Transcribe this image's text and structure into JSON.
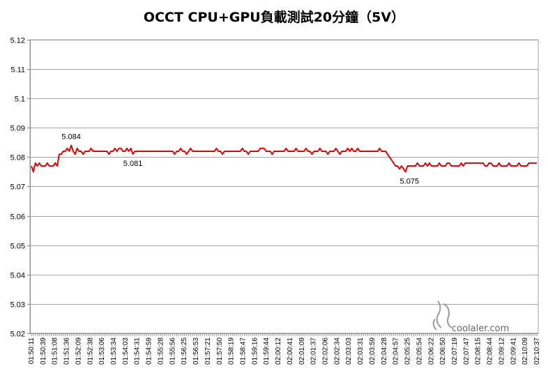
{
  "chart_data": {
    "type": "line",
    "title": "OCCT CPU+GPU負載測試20分鐘（5V）",
    "xlabel": "",
    "ylabel": "",
    "ylim": [
      5.02,
      5.12
    ],
    "yticks": [
      "5.12",
      "5.11",
      "5.1",
      "5.09",
      "5.08",
      "5.07",
      "5.06",
      "5.05",
      "5.04",
      "5.03",
      "5.02"
    ],
    "grid": true,
    "line_color": "#e60000",
    "x_tick_labels": [
      "01:50:11",
      "01:50:39",
      "01:51:08",
      "01:51:36",
      "01:52:09",
      "01:52:38",
      "01:53:06",
      "01:53:34",
      "01:54:03",
      "01:54:31",
      "01:54:59",
      "01:55:28",
      "01:55:56",
      "01:56:25",
      "01:56:53",
      "01:57:21",
      "01:57:50",
      "01:58:19",
      "01:58:47",
      "01:59:16",
      "01:59:44",
      "02:00:12",
      "02:00:41",
      "02:01:09",
      "02:01:37",
      "02:02:06",
      "02:02:34",
      "02:03:03",
      "02:03:31",
      "02:03:59",
      "02:04:28",
      "02:04:57",
      "02:05:25",
      "02:05:54",
      "02:06:22",
      "02:06:50",
      "02:07:19",
      "02:07:47",
      "02:08:15",
      "02:08:44",
      "02:09:12",
      "02:09:41",
      "02:10:09",
      "02:10:37"
    ],
    "series": [
      {
        "values": [
          5.077,
          5.075,
          5.078,
          5.077,
          5.078,
          5.077,
          5.077,
          5.077,
          5.078,
          5.077,
          5.077,
          5.077,
          5.078,
          5.077,
          5.081,
          5.081,
          5.082,
          5.082,
          5.083,
          5.082,
          5.084,
          5.082,
          5.081,
          5.083,
          5.082,
          5.082,
          5.081,
          5.082,
          5.082,
          5.082,
          5.083,
          5.082,
          5.082,
          5.082,
          5.082,
          5.082,
          5.082,
          5.082,
          5.082,
          5.081,
          5.082,
          5.082,
          5.083,
          5.082,
          5.083,
          5.083,
          5.082,
          5.082,
          5.083,
          5.082,
          5.083,
          5.081,
          5.082,
          5.082,
          5.082,
          5.082,
          5.082,
          5.082,
          5.082,
          5.082,
          5.082,
          5.082,
          5.082,
          5.082,
          5.082,
          5.082,
          5.082,
          5.082,
          5.082,
          5.082,
          5.082,
          5.082,
          5.081,
          5.082,
          5.082,
          5.083,
          5.082,
          5.082,
          5.081,
          5.082,
          5.083,
          5.082,
          5.082,
          5.082,
          5.082,
          5.082,
          5.082,
          5.082,
          5.082,
          5.082,
          5.082,
          5.082,
          5.082,
          5.083,
          5.082,
          5.082,
          5.081,
          5.082,
          5.082,
          5.082,
          5.082,
          5.082,
          5.082,
          5.082,
          5.082,
          5.082,
          5.083,
          5.082,
          5.082,
          5.081,
          5.082,
          5.082,
          5.082,
          5.082,
          5.082,
          5.083,
          5.083,
          5.083,
          5.082,
          5.082,
          5.082,
          5.081,
          5.082,
          5.082,
          5.082,
          5.082,
          5.082,
          5.082,
          5.083,
          5.082,
          5.082,
          5.082,
          5.082,
          5.083,
          5.082,
          5.082,
          5.082,
          5.082,
          5.083,
          5.082,
          5.082,
          5.081,
          5.082,
          5.082,
          5.082,
          5.083,
          5.082,
          5.082,
          5.082,
          5.081,
          5.082,
          5.082,
          5.082,
          5.083,
          5.082,
          5.081,
          5.082,
          5.082,
          5.082,
          5.083,
          5.082,
          5.083,
          5.082,
          5.082,
          5.083,
          5.082,
          5.082,
          5.082,
          5.082,
          5.082,
          5.082,
          5.082,
          5.082,
          5.082,
          5.082,
          5.083,
          5.082,
          5.082,
          5.082,
          5.081,
          5.08,
          5.079,
          5.078,
          5.077,
          5.077,
          5.076,
          5.077,
          5.076,
          5.075,
          5.077,
          5.077,
          5.077,
          5.077,
          5.077,
          5.078,
          5.077,
          5.077,
          5.077,
          5.078,
          5.077,
          5.078,
          5.077,
          5.077,
          5.077,
          5.077,
          5.078,
          5.077,
          5.077,
          5.077,
          5.078,
          5.078,
          5.077,
          5.077,
          5.077,
          5.077,
          5.077,
          5.078,
          5.077,
          5.078,
          5.078,
          5.078,
          5.078,
          5.078,
          5.078,
          5.078,
          5.078,
          5.078,
          5.078,
          5.077,
          5.077,
          5.078,
          5.078,
          5.077,
          5.077,
          5.077,
          5.078,
          5.077,
          5.077,
          5.077,
          5.077,
          5.078,
          5.077,
          5.077,
          5.077,
          5.077,
          5.078,
          5.077,
          5.077,
          5.077,
          5.077,
          5.078,
          5.078,
          5.078,
          5.078,
          5.078
        ]
      }
    ],
    "annotations": [
      {
        "text": "5.084",
        "index": 20,
        "value": 5.084,
        "placement": "above"
      },
      {
        "text": "5.081",
        "index": 51,
        "value": 5.081,
        "placement": "below"
      },
      {
        "text": "5.075",
        "index": 190,
        "value": 5.075,
        "placement": "below"
      }
    ]
  },
  "watermark": {
    "text": "coolaler.com"
  }
}
